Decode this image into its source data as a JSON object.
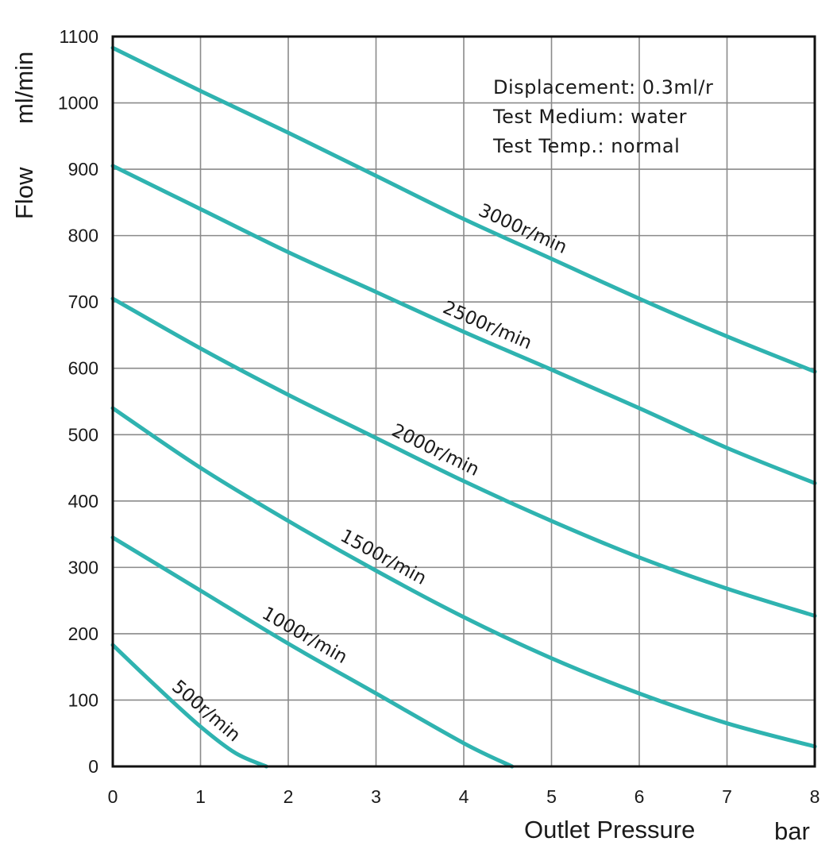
{
  "chart_data": {
    "type": "line",
    "xlabel": "Outlet Pressure",
    "xunit": "bar",
    "ylabel": "Flow",
    "yunit": "ml/min",
    "xlim": [
      0,
      8
    ],
    "ylim": [
      0,
      1100
    ],
    "xticks": [
      0,
      1,
      2,
      3,
      4,
      5,
      6,
      7,
      8
    ],
    "yticks": [
      0,
      100,
      200,
      300,
      400,
      500,
      600,
      700,
      800,
      900,
      1000,
      1100
    ],
    "grid": true,
    "curve_color": "#2fb3b0",
    "annotations": [
      "Displacement: 0.3ml/r",
      "Test Medium: water",
      "Test Temp.: normal"
    ],
    "series": [
      {
        "name": "3000r/min",
        "x": [
          0,
          1,
          2,
          3,
          4,
          5,
          6,
          7,
          8
        ],
        "y": [
          1083,
          1018,
          955,
          890,
          825,
          765,
          705,
          648,
          595
        ],
        "label_at": 4.6
      },
      {
        "name": "2500r/min",
        "x": [
          0,
          1,
          2,
          3,
          4,
          5,
          6,
          7,
          8
        ],
        "y": [
          905,
          840,
          775,
          715,
          655,
          598,
          540,
          480,
          427
        ],
        "label_at": 4.2
      },
      {
        "name": "2000r/min",
        "x": [
          0,
          1,
          2,
          3,
          4,
          5,
          6,
          7,
          8
        ],
        "y": [
          705,
          630,
          560,
          495,
          430,
          370,
          315,
          268,
          227
        ],
        "label_at": 3.6
      },
      {
        "name": "1500r/min",
        "x": [
          0,
          1,
          2,
          3,
          4,
          5,
          6,
          7,
          8
        ],
        "y": [
          540,
          450,
          370,
          295,
          225,
          163,
          110,
          65,
          30
        ],
        "label_at": 3.0
      },
      {
        "name": "1000r/min",
        "x": [
          0,
          1,
          2,
          3,
          4,
          4.55
        ],
        "y": [
          345,
          265,
          185,
          110,
          35,
          0
        ],
        "label_at": 2.1
      },
      {
        "name": "500r/min",
        "x": [
          0,
          0.5,
          1,
          1.4,
          1.75
        ],
        "y": [
          183,
          120,
          60,
          20,
          0
        ],
        "label_at": 0.95
      }
    ]
  }
}
